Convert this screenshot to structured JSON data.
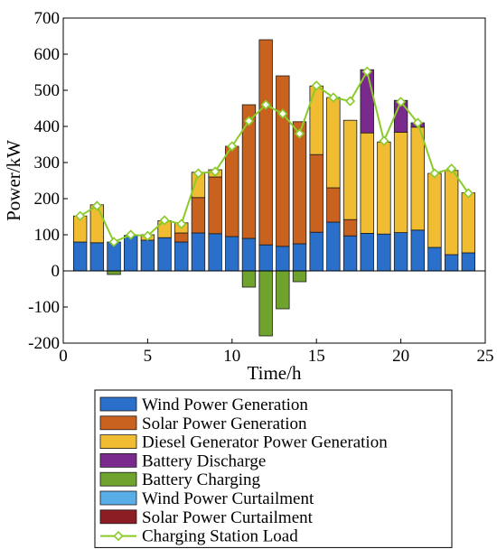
{
  "chart_data": {
    "type": "bar",
    "xlabel": "Time/h",
    "ylabel": "Power/kW",
    "xlim": [
      0,
      25
    ],
    "ylim": [
      -200,
      700
    ],
    "xticks": [
      0,
      5,
      10,
      15,
      20,
      25
    ],
    "yticks": [
      -200,
      -100,
      0,
      100,
      200,
      300,
      400,
      500,
      600,
      700
    ],
    "x": [
      1,
      2,
      3,
      4,
      5,
      6,
      7,
      8,
      9,
      10,
      11,
      12,
      13,
      14,
      15,
      16,
      17,
      18,
      19,
      20,
      21,
      22,
      23,
      24
    ],
    "series": [
      {
        "name": "Wind Power Generation",
        "color": "#2a6fc9",
        "values": [
          80,
          78,
          80,
          98,
          85,
          92,
          80,
          105,
          103,
          95,
          90,
          72,
          68,
          75,
          107,
          135,
          97,
          104,
          102,
          106,
          113,
          65,
          45,
          50
        ]
      },
      {
        "name": "Solar Power Generation",
        "color": "#c8621e",
        "values": [
          0,
          0,
          0,
          0,
          0,
          0,
          25,
          98,
          157,
          250,
          370,
          568,
          472,
          338,
          215,
          95,
          45,
          0,
          0,
          0,
          0,
          0,
          0,
          0
        ]
      },
      {
        "name": "Diesel Generator Power Generation",
        "color": "#f0bd32",
        "values": [
          72,
          105,
          0,
          0,
          15,
          47,
          28,
          70,
          20,
          0,
          0,
          0,
          0,
          0,
          190,
          250,
          275,
          278,
          255,
          278,
          285,
          205,
          233,
          166
        ]
      },
      {
        "name": "Battery Discharge",
        "color": "#7a2a8c",
        "values": [
          0,
          0,
          0,
          0,
          0,
          0,
          0,
          0,
          0,
          0,
          0,
          0,
          0,
          0,
          0,
          0,
          0,
          175,
          0,
          88,
          12,
          0,
          0,
          0
        ]
      },
      {
        "name": "Battery Charging",
        "color": "#6fa32e",
        "values": [
          0,
          0,
          -10,
          0,
          0,
          0,
          0,
          0,
          0,
          0,
          -45,
          -180,
          -105,
          -30,
          0,
          0,
          0,
          0,
          0,
          0,
          0,
          0,
          0,
          0
        ]
      },
      {
        "name": "Wind Power Curtailment",
        "color": "#5aaee8",
        "values": [
          0,
          0,
          0,
          0,
          0,
          0,
          0,
          0,
          0,
          0,
          0,
          0,
          0,
          0,
          0,
          0,
          0,
          0,
          0,
          0,
          0,
          0,
          0,
          0
        ]
      },
      {
        "name": "Solar Power Curtailment",
        "color": "#8c1d24",
        "values": [
          0,
          0,
          0,
          0,
          0,
          0,
          0,
          0,
          0,
          0,
          0,
          0,
          0,
          0,
          0,
          0,
          0,
          0,
          0,
          0,
          0,
          0,
          0,
          0
        ]
      }
    ],
    "line": {
      "name": "Charging Station Load",
      "color": "#8acb2a",
      "values": [
        152,
        180,
        80,
        100,
        97,
        140,
        130,
        270,
        275,
        345,
        415,
        460,
        435,
        380,
        513,
        480,
        470,
        552,
        360,
        468,
        410,
        270,
        283,
        215
      ]
    },
    "legend_position": "bottom",
    "grid": false
  }
}
